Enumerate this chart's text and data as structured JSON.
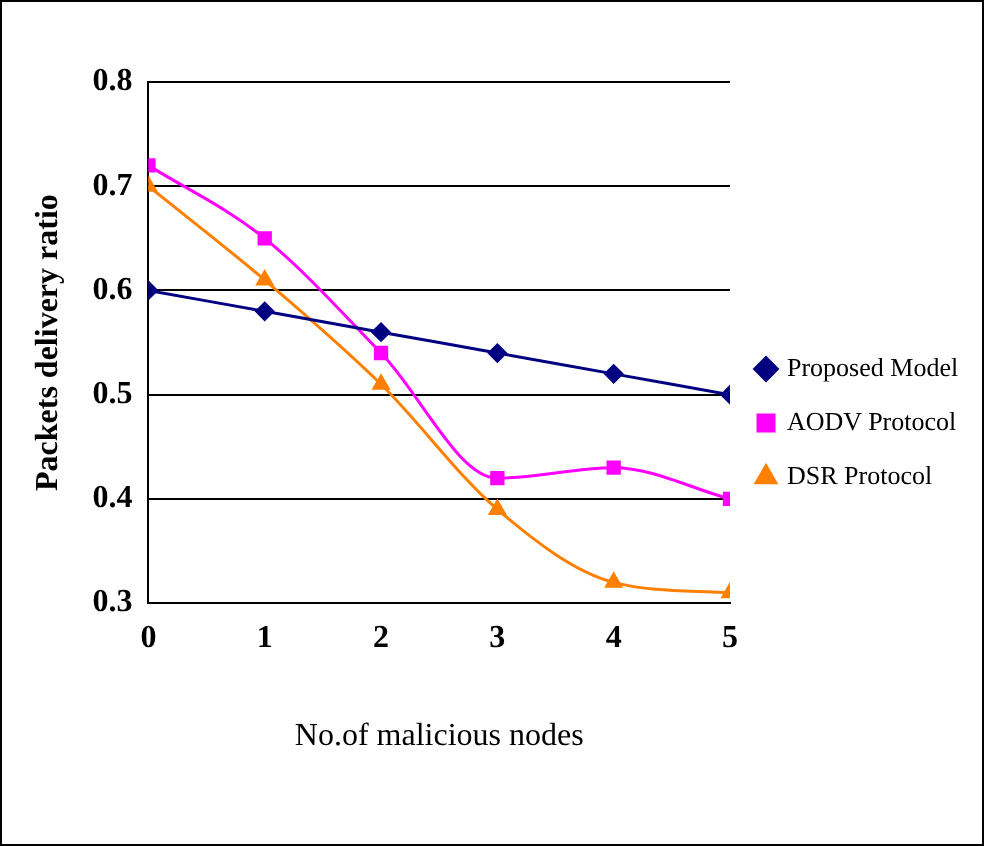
{
  "chart_data": {
    "type": "line",
    "xlabel": "No.of malicious nodes",
    "ylabel": "Packets delivery ratio",
    "x": [
      0,
      1,
      2,
      3,
      4,
      5
    ],
    "xlim": [
      0,
      5
    ],
    "xticks": [
      0,
      1,
      2,
      3,
      4,
      5
    ],
    "ylim": [
      0.3,
      0.8
    ],
    "yticks": [
      0.3,
      0.4,
      0.5,
      0.6,
      0.7,
      0.8
    ],
    "grid": "y",
    "legend": "right",
    "series": [
      {
        "name": "Proposed Model",
        "color": "#000080",
        "marker": "diamond",
        "values": [
          0.6,
          0.58,
          0.56,
          0.54,
          0.52,
          0.5
        ]
      },
      {
        "name": "AODV Protocol",
        "color": "#ff00ff",
        "marker": "square",
        "values": [
          0.72,
          0.65,
          0.54,
          0.42,
          0.43,
          0.4
        ]
      },
      {
        "name": "DSR Protocol",
        "color": "#ff8000",
        "marker": "triangle",
        "values": [
          0.7,
          0.61,
          0.51,
          0.39,
          0.32,
          0.31
        ]
      }
    ]
  }
}
